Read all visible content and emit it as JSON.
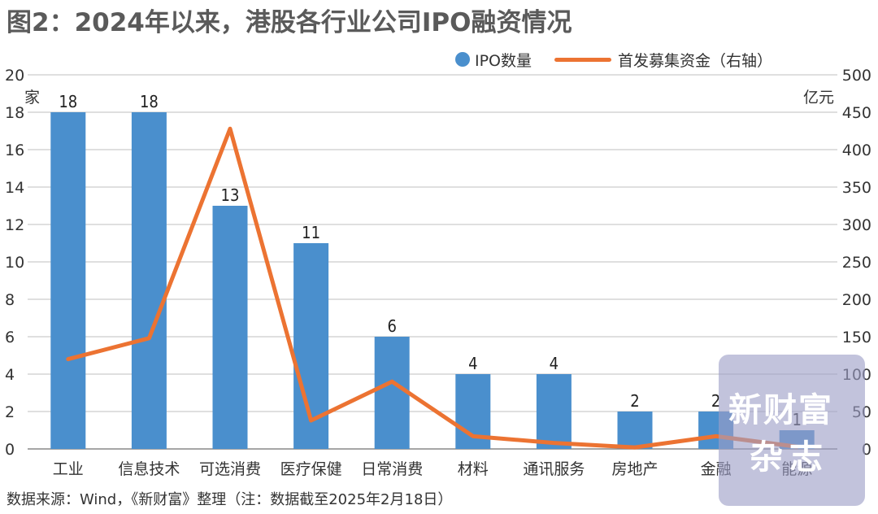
{
  "title": "图2：2024年以来，港股各行业公司IPO融资情况",
  "source": "数据来源：Wind，《新财富》整理（注：数据截至2025年2月18日）",
  "watermark": {
    "line1": "新财富",
    "line2": "杂志"
  },
  "colors": {
    "bar": "#4a8fcd",
    "line": "#ec7332",
    "grid": "#bfbfbf"
  },
  "chart_data": {
    "type": "bar",
    "title": "图2：2024年以来，港股各行业公司IPO融资情况",
    "categories": [
      "工业",
      "信息技术",
      "可选消费",
      "医疗保健",
      "日常消费",
      "材料",
      "通讯服务",
      "房地产",
      "金融",
      "能源"
    ],
    "series": [
      {
        "name": "IPO数量",
        "type": "bar",
        "axis": "left",
        "values": [
          18,
          18,
          13,
          11,
          6,
          4,
          4,
          2,
          2,
          1
        ]
      },
      {
        "name": "首发募集资金（右轴）",
        "type": "line",
        "axis": "right",
        "values": [
          120,
          148,
          428,
          38,
          90,
          17,
          8,
          2,
          17,
          3
        ]
      }
    ],
    "ylabel_left": "家",
    "ylabel_right": "亿元",
    "ylim_left": [
      0,
      20
    ],
    "yticks_left": [
      0,
      2,
      4,
      6,
      8,
      10,
      12,
      14,
      16,
      18,
      20
    ],
    "ylim_right": [
      0,
      500
    ],
    "yticks_right": [
      0,
      50,
      100,
      150,
      200,
      250,
      300,
      350,
      400,
      450,
      500
    ],
    "grid": true,
    "legend": "top-right"
  }
}
